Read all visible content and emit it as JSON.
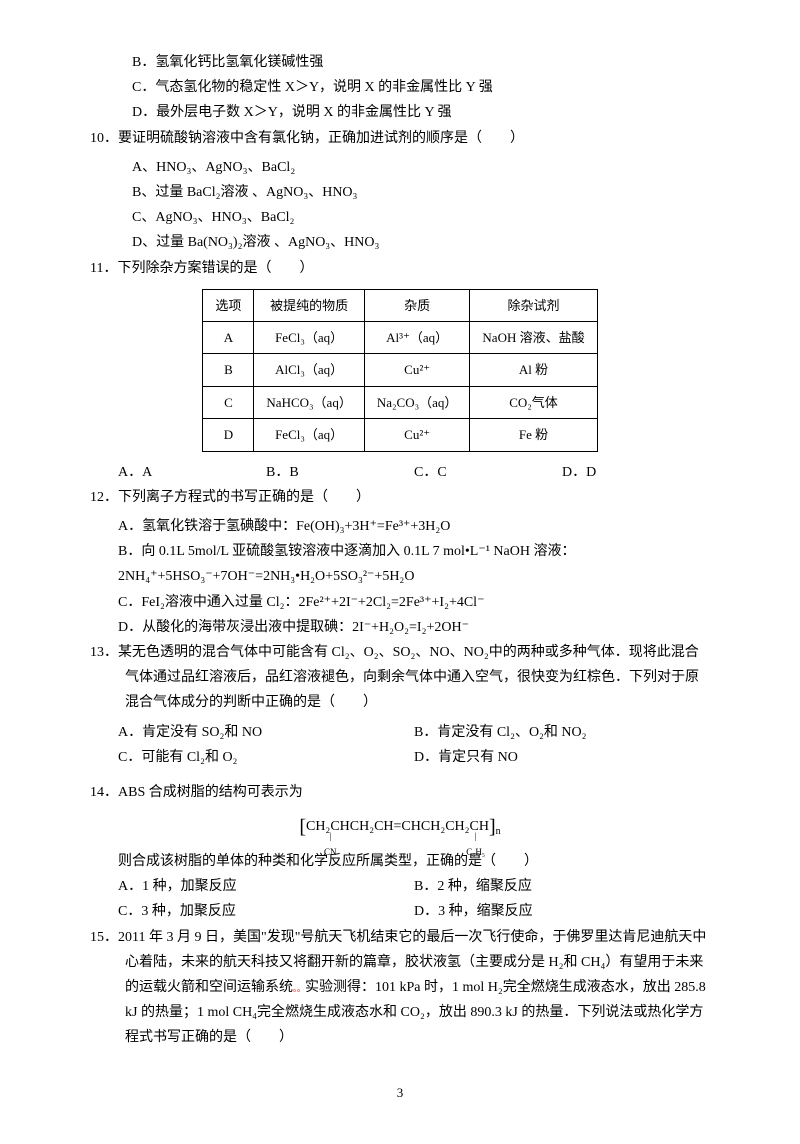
{
  "q9": {
    "optB": "B．氢氧化钙比氢氧化镁碱性强",
    "optC": "C．气态氢化物的稳定性 X＞Y，说明 X 的非金属性比 Y 强",
    "optD": "D．最外层电子数 X＞Y，说明 X 的非金属性比 Y 强"
  },
  "q10": {
    "stem": "10．要证明硫酸钠溶液中含有氯化钠，正确加进试剂的顺序是（　　）",
    "optA": "A、HNO₃、AgNO₃、BaCl₂",
    "optB": "B、过量 BaCl₂溶液 、AgNO₃、HNO₃",
    "optC": "C、AgNO₃、HNO₃、BaCl₂",
    "optD": "D、过量 Ba(NO₃)₂溶液 、AgNO₃、HNO₃"
  },
  "q11": {
    "stem": "11．下列除杂方案错误的是（　　）",
    "table": {
      "headers": [
        "选项",
        "被提纯的物质",
        "杂质",
        "除杂试剂"
      ],
      "rows": [
        [
          "A",
          "FeCl₃（aq）",
          "Al³⁺（aq）",
          "NaOH 溶液、盐酸"
        ],
        [
          "B",
          "AlCl₃（aq）",
          "Cu²⁺",
          "Al 粉"
        ],
        [
          "C",
          "NaHCO₃（aq）",
          "Na₂CO₃（aq）",
          "CO₂气体"
        ],
        [
          "D",
          "FeCl₃（aq）",
          "Cu²⁺",
          "Fe 粉"
        ]
      ]
    },
    "optA": "A．A",
    "optB": "B．B",
    "optC": "C．C",
    "optD": "D．D"
  },
  "q12": {
    "stem": "12．下列离子方程式的书写正确的是（　　）",
    "optA": "A．氢氧化铁溶于氢碘酸中：Fe(OH)₃+3H⁺=Fe³⁺+3H₂O",
    "optB1": "B．向 0.1L 5mol/L 亚硫酸氢铵溶液中逐滴加入 0.1L 7 mol•L⁻¹ NaOH 溶液：",
    "optB2": "2NH₄⁺+5HSO₃⁻+7OH⁻=2NH₃•H₂O+5SO₃²⁻+5H₂O",
    "optC": "C．FeI₂溶液中通入过量 Cl₂：2Fe²⁺+2I⁻+2Cl₂=2Fe³⁺+I₂+4Cl⁻",
    "optD": "D．从酸化的海带灰浸出液中提取碘：2I⁻+H₂O₂=I₂+2OH⁻"
  },
  "q13": {
    "stem": "13．某无色透明的混合气体中可能含有 Cl₂、O₂、SO₂、NO、NO₂中的两种或多种气体．现将此混合气体通过品红溶液后，品红溶液褪色，向剩余气体中通入空气，很快变为红棕色．下列对于原混合气体成分的判断中正确的是（　　）",
    "optA": "A．肯定没有 SO₂和 NO",
    "optB": "B．肯定没有 Cl₂、O₂和 NO₂",
    "optC": "C．可能有 Cl₂和 O₂",
    "optD": "D．肯定只有 NO"
  },
  "q14": {
    "stem": "14．ABS 合成树脂的结构可表示为",
    "formula_main": "CH₂CHCH₂CH=CHCH₂CH₂CH",
    "formula_sub1": "CN",
    "formula_sub2": "C₆H₅",
    "formula_n": "n",
    "after": "则合成该树脂的单体的种类和化学反应所属类型，正确的是（　　）",
    "optA": "A．1 种，加聚反应",
    "optB": "B．2 种，缩聚反应",
    "optC": "C．3 种，加聚反应",
    "optD": "D．3 种，缩聚反应"
  },
  "q15": {
    "stem": "15．2011 年 3 月 9 日，美国\"发现\"号航天飞机结束它的最后一次飞行使命，于佛罗里达肯尼迪航天中心着陆，未来的航天科技又将翻开新的篇章，胶状液氢（主要成分是 H₂和 CH₄）有望用于未来的运载火箭和空间运输系统",
    "stem2": "实验测得：101 kPa 时，1 mol H₂完全燃烧生成液态水，放出 285.8 kJ 的热量；1 mol CH₄完全燃烧生成液态水和 CO₂，放出 890.3 kJ 的热量．下列说法或热化学方程式书写正确的是（　　）"
  },
  "page": "3"
}
